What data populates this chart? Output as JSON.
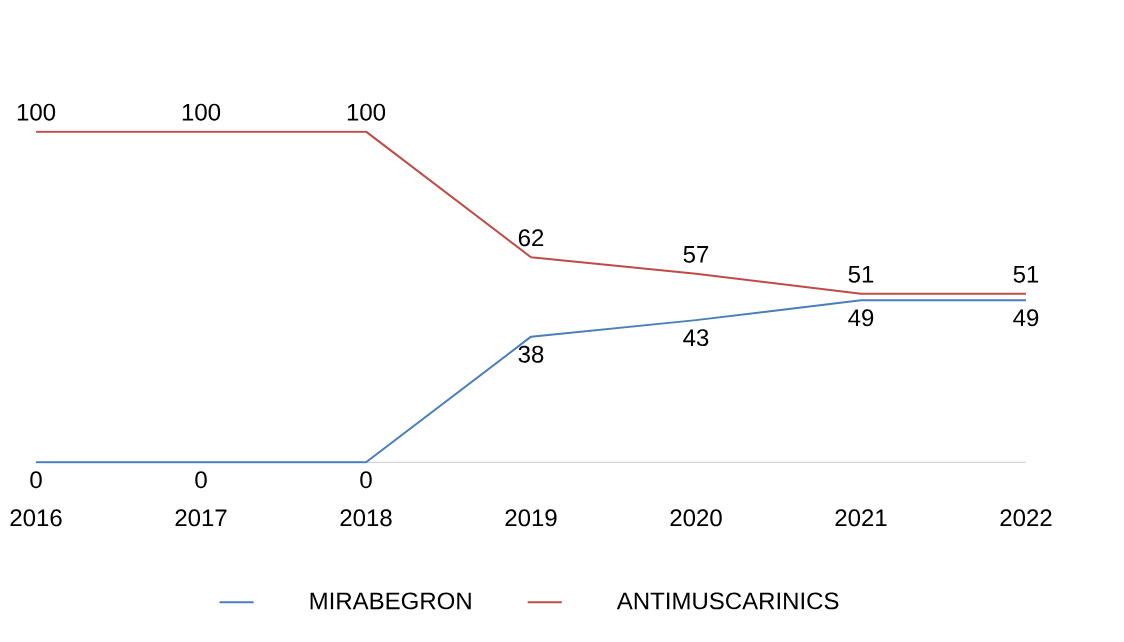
{
  "chart_data": {
    "type": "line",
    "categories": [
      "2016",
      "2017",
      "2018",
      "2019",
      "2020",
      "2021",
      "2022"
    ],
    "series": [
      {
        "name": "MIRABEGRON",
        "color": "#4a7ebb",
        "values": [
          0,
          0,
          0,
          38,
          43,
          49,
          49
        ]
      },
      {
        "name": "ANTIMUSCARINICS",
        "color": "#be4b48",
        "values": [
          100,
          100,
          100,
          62,
          57,
          51,
          51
        ]
      }
    ],
    "data_labels": true,
    "legend": "bottom",
    "grid": false,
    "marker": "none",
    "line_style": "solid"
  }
}
